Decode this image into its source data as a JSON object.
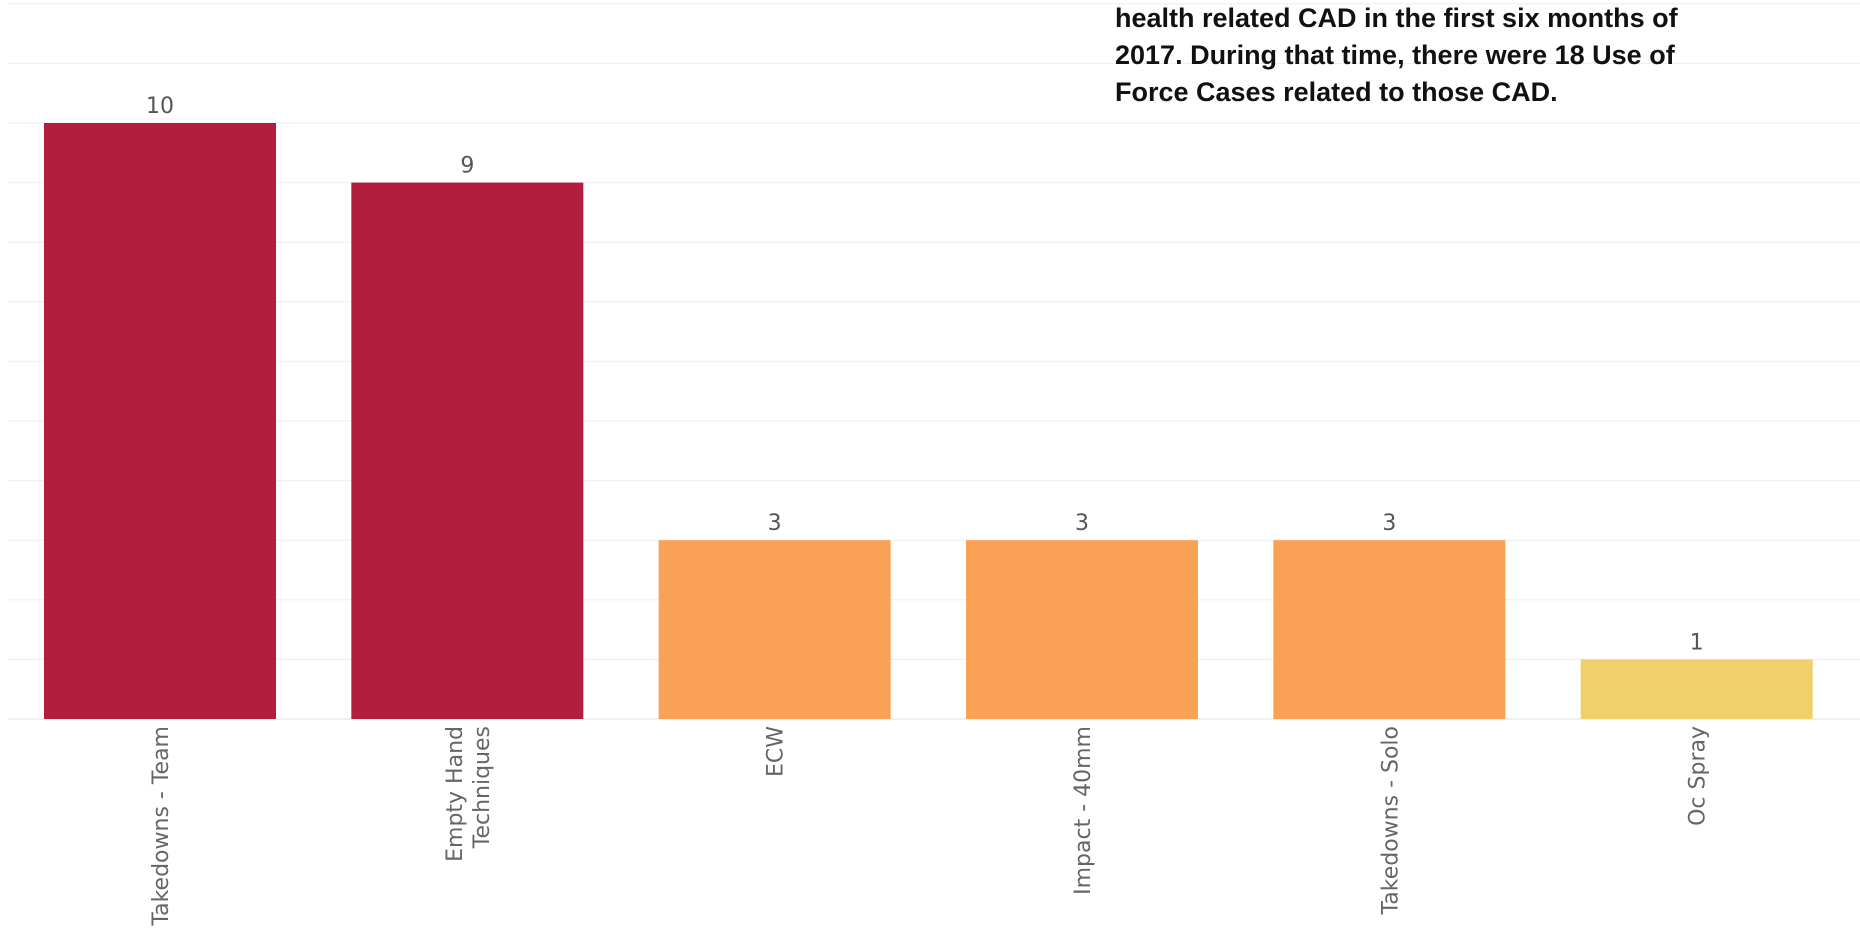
{
  "annotation": {
    "lines": [
      "health related CAD in the first six months of",
      "2017.  During that time, there were 18 Use of",
      "Force Cases related to those CAD."
    ]
  },
  "chart_data": {
    "type": "bar",
    "title": "",
    "xlabel": "",
    "ylabel": "",
    "ylim": [
      0,
      12
    ],
    "grid": true,
    "categories": [
      [
        "Takedowns - Team"
      ],
      [
        "Empty Hand",
        "Techniques"
      ],
      [
        "ECW"
      ],
      [
        "Impact - 40mm"
      ],
      [
        "Takedowns - Solo"
      ],
      [
        "Oc Spray"
      ]
    ],
    "values": [
      10,
      9,
      3,
      3,
      3,
      1
    ],
    "data_labels": [
      "10",
      "9",
      "3",
      "3",
      "3",
      "1"
    ],
    "colors": [
      "#b41e3e",
      "#b41e3e",
      "#f9a154",
      "#f9a154",
      "#f9a154",
      "#efd06a"
    ]
  }
}
